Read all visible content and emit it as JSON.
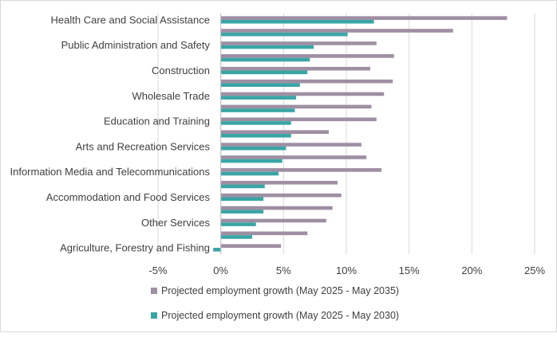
{
  "chart_data": {
    "type": "bar",
    "orientation": "horizontal",
    "categories": [
      "Health Care and Social Assistance",
      "",
      "Public Administration and Safety",
      "",
      "Construction",
      "",
      "Wholesale Trade",
      "",
      "Education and Training",
      "",
      "Arts and Recreation Services",
      "",
      "Information Media and Telecommunications",
      "",
      "Accommodation and Food Services",
      "",
      "Other Services",
      "",
      "Agriculture, Forestry and Fishing"
    ],
    "series": [
      {
        "name": "Projected employment growth (May 2025 - May 2035)",
        "color": "#9e8fa3",
        "values": [
          22.8,
          18.5,
          12.4,
          13.8,
          11.9,
          13.7,
          13.0,
          12.0,
          12.4,
          8.6,
          11.2,
          11.6,
          12.8,
          9.3,
          9.6,
          8.9,
          8.4,
          6.9,
          4.8
        ]
      },
      {
        "name": "Projected employment growth (May 2025 - May 2030)",
        "color": "#3aa5a5",
        "values": [
          12.2,
          10.1,
          7.4,
          7.1,
          6.9,
          6.3,
          6.0,
          5.9,
          5.6,
          5.6,
          5.2,
          4.9,
          4.6,
          3.5,
          3.4,
          3.4,
          2.8,
          2.5,
          -0.6
        ]
      }
    ],
    "xlim": [
      -5,
      25
    ],
    "xticks": [
      "-5%",
      "0%",
      "5%",
      "10%",
      "15%",
      "20%",
      "25%"
    ],
    "grid": true,
    "legend_position": "bottom"
  }
}
